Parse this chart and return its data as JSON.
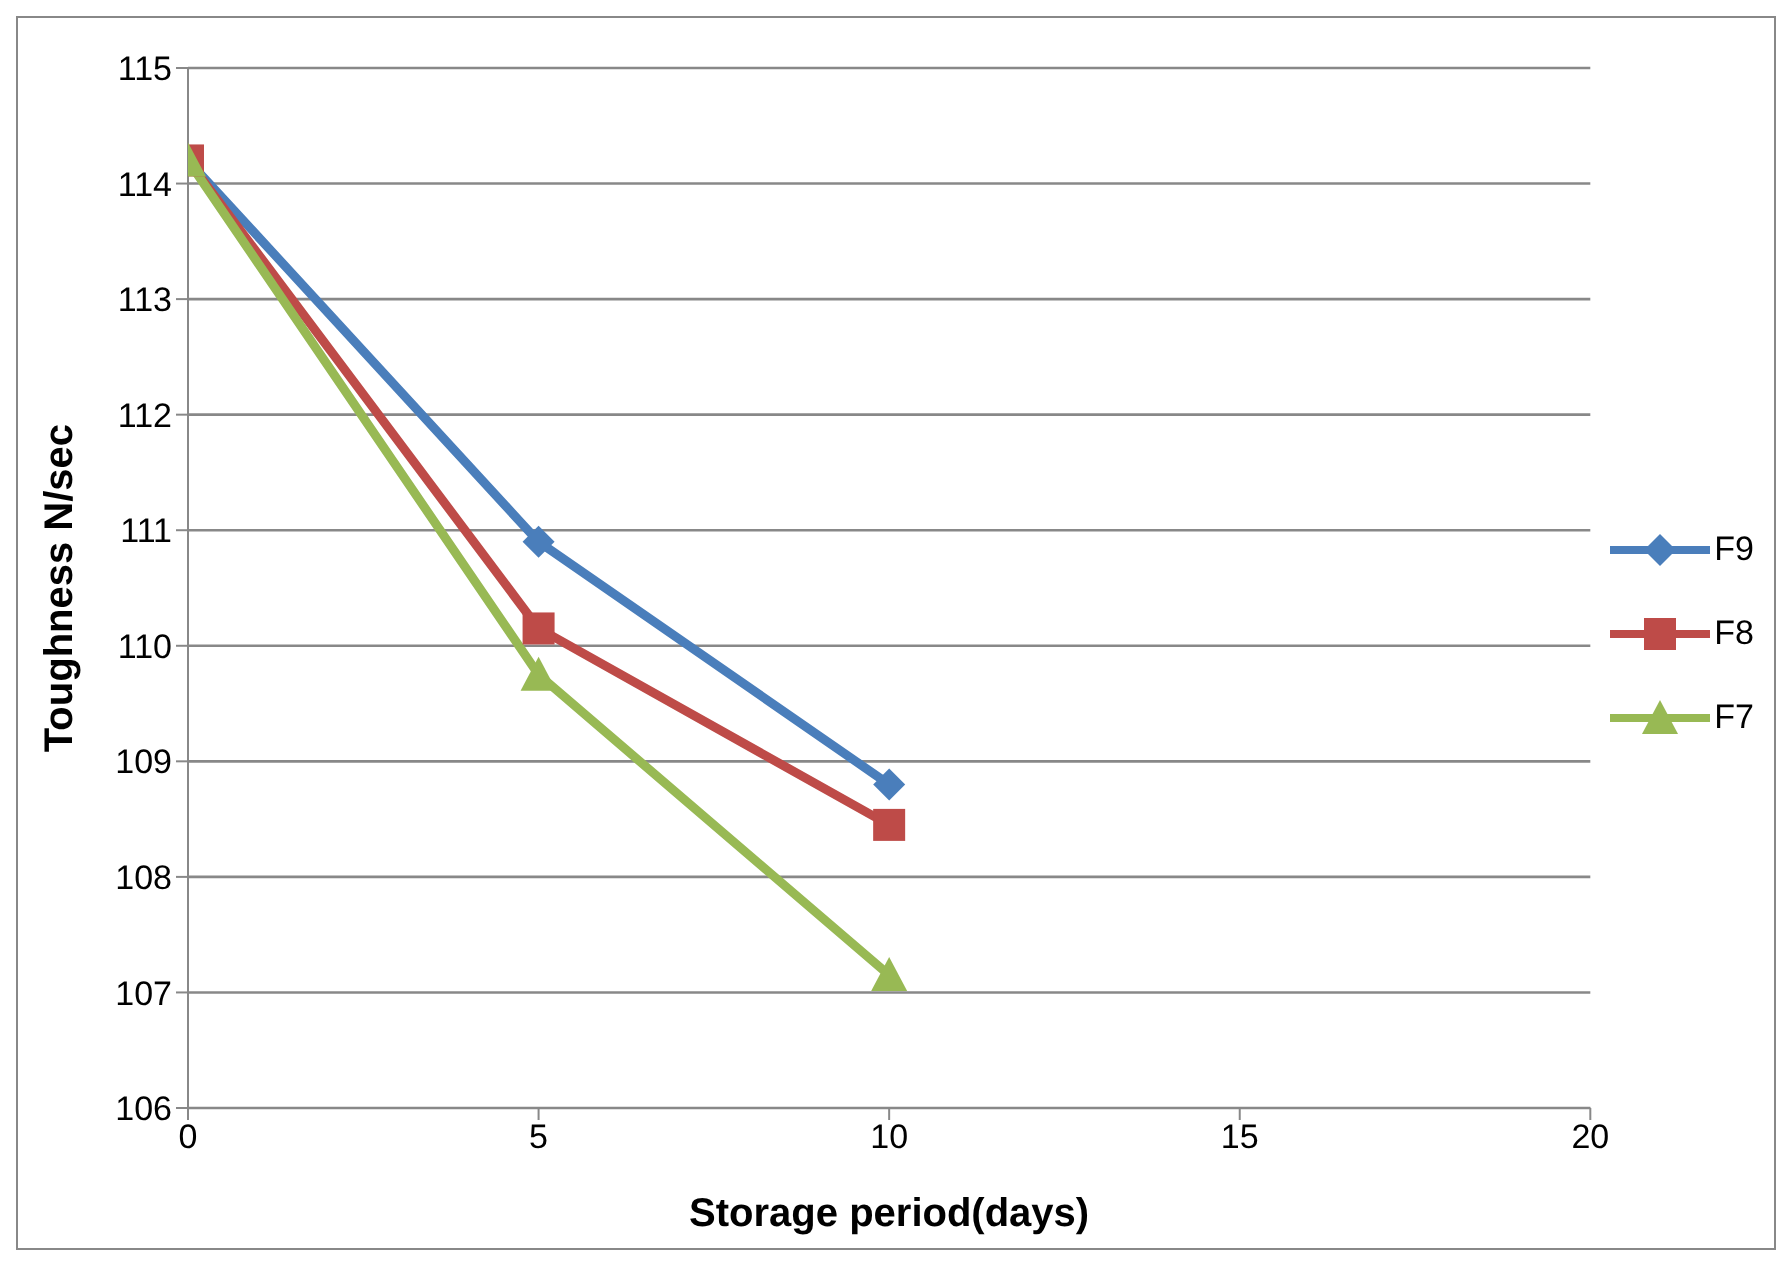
{
  "chart_data": {
    "type": "line",
    "xlabel": "Storage period(days)",
    "ylabel": "Toughness N/sec",
    "x": [
      0,
      5,
      10
    ],
    "series": [
      {
        "name": "F9",
        "color": "#4a7ebb",
        "values": [
          114.2,
          110.9,
          108.8
        ],
        "marker": "diamond"
      },
      {
        "name": "F8",
        "color": "#be4b48",
        "values": [
          114.2,
          110.15,
          108.45
        ],
        "marker": "square"
      },
      {
        "name": "F7",
        "color": "#98b954",
        "values": [
          114.2,
          109.75,
          107.15
        ],
        "marker": "triangle"
      }
    ],
    "xlim": [
      0,
      20
    ],
    "xticks": [
      0,
      5,
      10,
      15,
      20
    ],
    "ylim": [
      106,
      115
    ],
    "yticks": [
      106,
      107,
      108,
      109,
      110,
      111,
      112,
      113,
      114,
      115
    ],
    "grid": "y",
    "legend": "right"
  }
}
